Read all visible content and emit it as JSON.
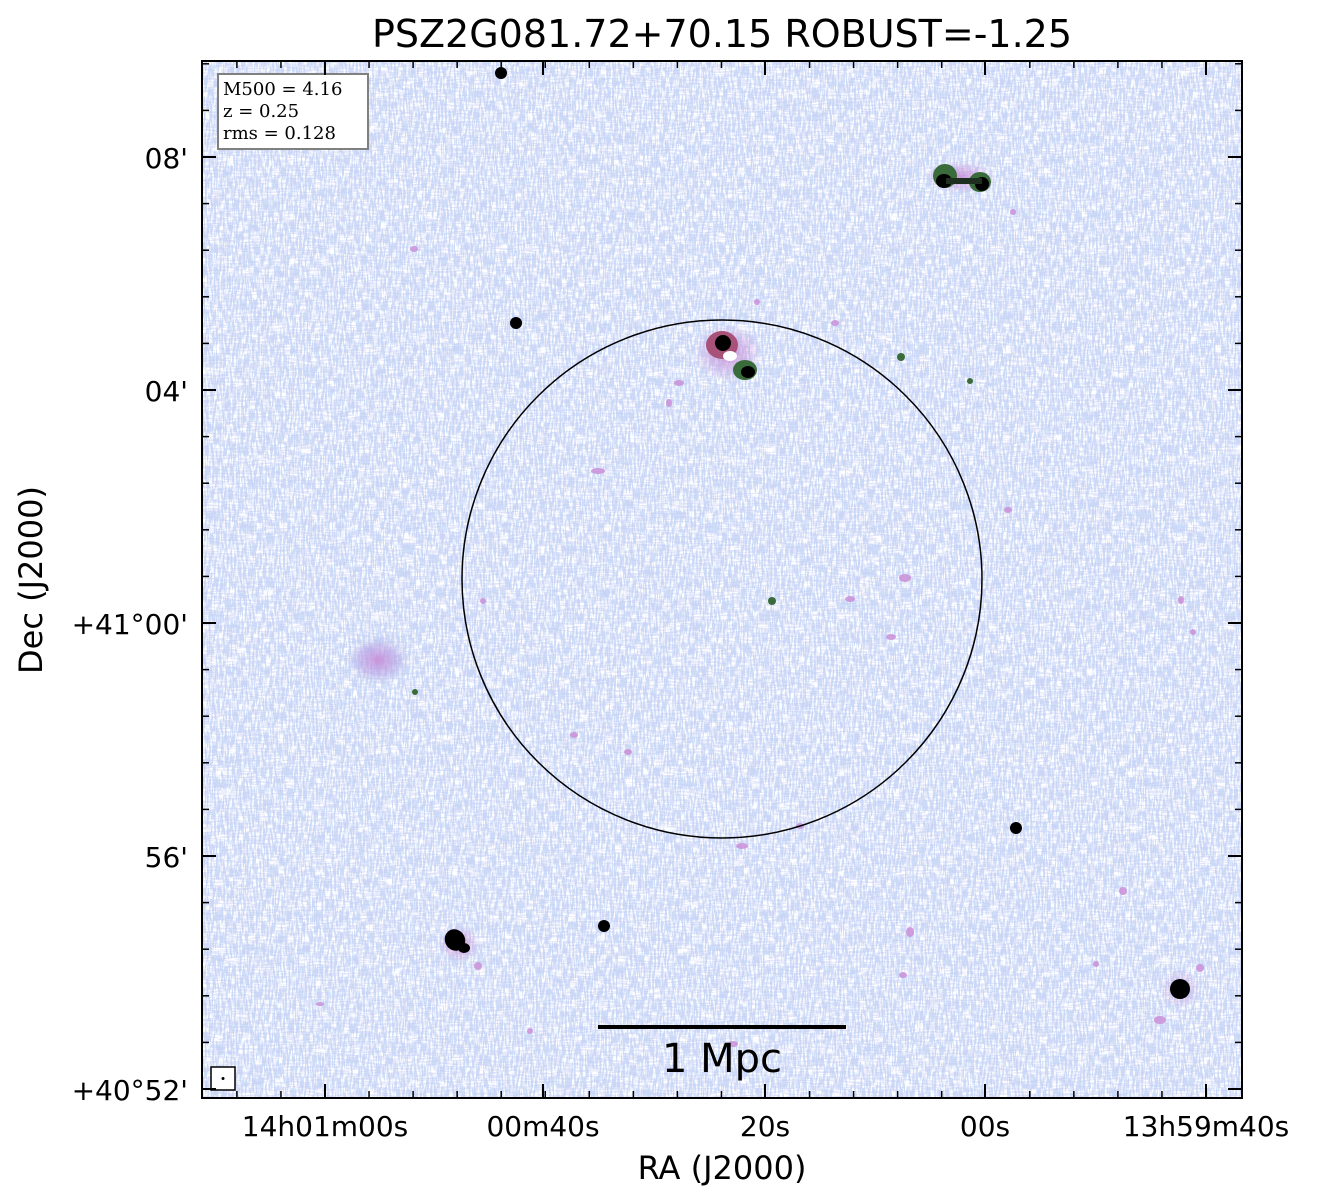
{
  "chart_data": {
    "type": "heatmap",
    "title": "PSZ2G081.72+70.15 ROBUST=-1.25",
    "xlabel": "RA (J2000)",
    "ylabel": "Dec (J2000)",
    "x_tick_labels": [
      "14h01m00s",
      "00m40s",
      "20s",
      "00s",
      "13h59m40s"
    ],
    "y_tick_labels": [
      "08'",
      "04'",
      "+41°00'",
      "56'",
      "+40°52'"
    ],
    "info_box": [
      "M500 = 4.16",
      "z = 0.25",
      "rms = 0.128"
    ],
    "scale_bar_label": "1 Mpc",
    "colormap": [
      "#ffffff",
      "#b8cdea",
      "#9aa7e6",
      "#c98fd8",
      "#a8527a",
      "#3a6b3a",
      "#000000"
    ],
    "grid": false,
    "legend": "none"
  }
}
